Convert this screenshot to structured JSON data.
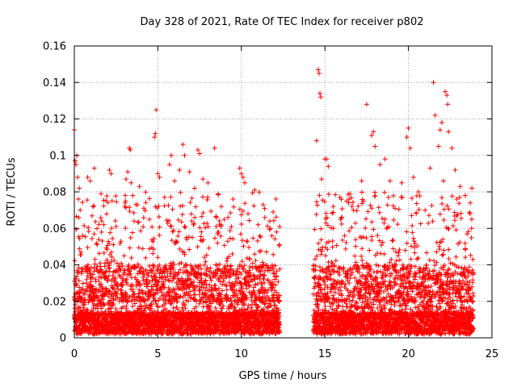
{
  "chart_data": {
    "type": "scatter",
    "title": "Day 328 of 2021, Rate Of TEC Index for receiver p802",
    "xlabel": "GPS time / hours",
    "ylabel": "ROTI / TECUs",
    "xlim": [
      0,
      25
    ],
    "ylim": [
      0,
      0.16
    ],
    "x_ticks": [
      "0",
      "5",
      "10",
      "15",
      "20",
      "25"
    ],
    "y_ticks": [
      "0",
      "0.02",
      "0.04",
      "0.06",
      "0.08",
      "0.1",
      "0.12",
      "0.14",
      "0.16"
    ],
    "x_tick_values": [
      0,
      5,
      10,
      15,
      20,
      25
    ],
    "y_tick_values": [
      0,
      0.02,
      0.04,
      0.06,
      0.08,
      0.1,
      0.12,
      0.14,
      0.16
    ],
    "grid": true,
    "marker": "plus",
    "color": "#ff0000",
    "data_gap_hours": [
      12.3,
      14.3
    ],
    "series": [
      {
        "points": [
          [
            0.0,
            0.114
          ],
          [
            0.05,
            0.097
          ],
          [
            0.1,
            0.095
          ],
          [
            0.15,
            0.1
          ],
          [
            0.2,
            0.088
          ],
          [
            0.3,
            0.082
          ],
          [
            0.35,
            0.07
          ],
          [
            0.5,
            0.056
          ],
          [
            0.8,
            0.088
          ],
          [
            0.95,
            0.086
          ],
          [
            1.2,
            0.093
          ],
          [
            1.6,
            0.079
          ],
          [
            2.1,
            0.092
          ],
          [
            2.2,
            0.09
          ],
          [
            2.5,
            0.061
          ],
          [
            3.1,
            0.087
          ],
          [
            3.2,
            0.091
          ],
          [
            3.3,
            0.104
          ],
          [
            3.35,
            0.103
          ],
          [
            3.4,
            0.085
          ],
          [
            3.5,
            0.078
          ],
          [
            3.9,
            0.083
          ],
          [
            4.5,
            0.065
          ],
          [
            4.8,
            0.11
          ],
          [
            4.85,
            0.112
          ],
          [
            4.9,
            0.125
          ],
          [
            5.0,
            0.09
          ],
          [
            5.1,
            0.088
          ],
          [
            5.4,
            0.077
          ],
          [
            5.7,
            0.095
          ],
          [
            5.8,
            0.1
          ],
          [
            6.0,
            0.086
          ],
          [
            6.3,
            0.092
          ],
          [
            6.5,
            0.106
          ],
          [
            6.6,
            0.1
          ],
          [
            6.9,
            0.091
          ],
          [
            7.2,
            0.082
          ],
          [
            7.4,
            0.103
          ],
          [
            7.5,
            0.101
          ],
          [
            7.7,
            0.087
          ],
          [
            8.0,
            0.085
          ],
          [
            8.4,
            0.104
          ],
          [
            8.8,
            0.072
          ],
          [
            9.2,
            0.066
          ],
          [
            9.5,
            0.076
          ],
          [
            9.9,
            0.093
          ],
          [
            10.0,
            0.09
          ],
          [
            10.1,
            0.088
          ],
          [
            10.2,
            0.085
          ],
          [
            10.4,
            0.068
          ],
          [
            10.8,
            0.081
          ],
          [
            11.0,
            0.062
          ],
          [
            11.3,
            0.073
          ],
          [
            11.7,
            0.064
          ],
          [
            12.1,
            0.058
          ],
          [
            14.5,
            0.108
          ],
          [
            14.6,
            0.147
          ],
          [
            14.65,
            0.145
          ],
          [
            14.7,
            0.134
          ],
          [
            14.75,
            0.132
          ],
          [
            14.8,
            0.087
          ],
          [
            15.0,
            0.098
          ],
          [
            15.1,
            0.098
          ],
          [
            15.2,
            0.094
          ],
          [
            15.5,
            0.072
          ],
          [
            15.9,
            0.077
          ],
          [
            16.3,
            0.075
          ],
          [
            16.5,
            0.079
          ],
          [
            16.7,
            0.07
          ],
          [
            17.2,
            0.086
          ],
          [
            17.5,
            0.128
          ],
          [
            17.8,
            0.111
          ],
          [
            17.9,
            0.113
          ],
          [
            18.0,
            0.105
          ],
          [
            18.3,
            0.095
          ],
          [
            18.6,
            0.098
          ],
          [
            18.9,
            0.086
          ],
          [
            19.2,
            0.071
          ],
          [
            19.6,
            0.085
          ],
          [
            19.9,
            0.11
          ],
          [
            20.0,
            0.115
          ],
          [
            20.1,
            0.104
          ],
          [
            20.3,
            0.088
          ],
          [
            20.6,
            0.08
          ],
          [
            21.0,
            0.07
          ],
          [
            21.3,
            0.093
          ],
          [
            21.5,
            0.14
          ],
          [
            21.6,
            0.122
          ],
          [
            21.8,
            0.105
          ],
          [
            21.9,
            0.114
          ],
          [
            22.0,
            0.118
          ],
          [
            22.1,
            0.086
          ],
          [
            22.2,
            0.135
          ],
          [
            22.3,
            0.133
          ],
          [
            22.35,
            0.128
          ],
          [
            22.4,
            0.113
          ],
          [
            22.6,
            0.104
          ],
          [
            22.8,
            0.092
          ],
          [
            23.1,
            0.083
          ],
          [
            23.4,
            0.078
          ],
          [
            23.7,
            0.074
          ],
          [
            23.8,
            0.082
          ]
        ]
      }
    ]
  }
}
